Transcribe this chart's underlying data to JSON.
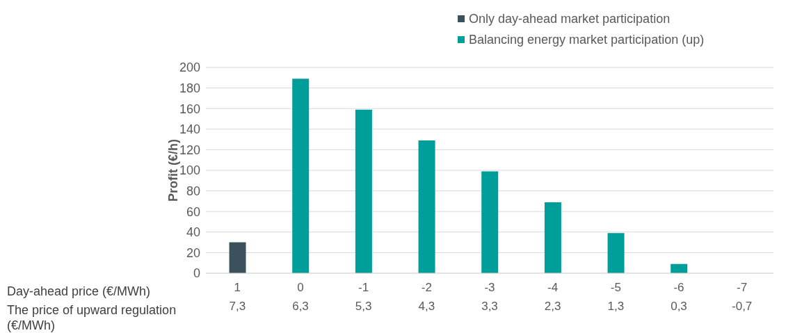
{
  "chart_data": {
    "type": "bar",
    "stacked": true,
    "ylabel": "Profit (€/h)",
    "categories": [
      "1\n7,3",
      "0\n6,3",
      "-1\n5,3",
      "-2\n4,3",
      "-3\n3,3",
      "-4\n2,3",
      "-5\n1,3",
      "-6\n0,3",
      "-7\n-0,7"
    ],
    "series": [
      {
        "name": "Only day-ahead market participation",
        "color": "#3b525c",
        "values": [
          30,
          null,
          null,
          null,
          null,
          null,
          null,
          null,
          null
        ]
      },
      {
        "name": "Balancing energy market participation (up)",
        "color": "#009e99",
        "values": [
          null,
          189,
          159,
          129,
          99,
          69,
          39,
          9,
          null
        ]
      }
    ],
    "ylim": [
      0,
      200
    ],
    "yticks": [
      0,
      20,
      40,
      60,
      80,
      100,
      120,
      140,
      160,
      180,
      200
    ],
    "grid": "y",
    "legend": "top",
    "annotations": [
      "Day-ahead price (€/MWh)",
      "The price of upward regulation (€/MWh)"
    ]
  }
}
